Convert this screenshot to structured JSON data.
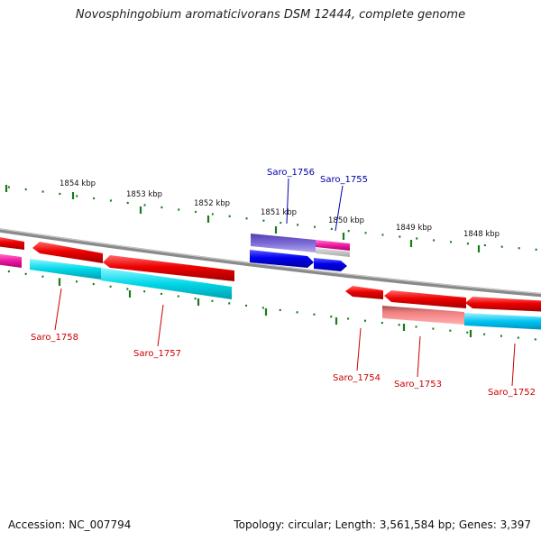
{
  "title": "Novosphingobium aromaticivorans DSM 12444, complete genome",
  "footer": {
    "accession": "Accession: NC_007794",
    "summary": "Topology: circular; Length: 3,561,584 bp; Genes: 3,397"
  },
  "scale": {
    "labels": [
      "1854 kbp",
      "1853 kbp",
      "1852 kbp",
      "1851 kbp",
      "1850 kbp",
      "1849 kbp",
      "1848 kbp"
    ]
  },
  "genes_top": [
    {
      "label": "Saro_1756",
      "color": "#0000aa"
    },
    {
      "label": "Saro_1755",
      "color": "#0000aa"
    }
  ],
  "genes_bottom": [
    {
      "label": "Saro_1758",
      "color": "#cc0000"
    },
    {
      "label": "Saro_1757",
      "color": "#cc0000"
    },
    {
      "label": "Saro_1754",
      "color": "#cc0000"
    },
    {
      "label": "Saro_1753",
      "color": "#cc0000"
    },
    {
      "label": "Saro_1752",
      "color": "#cc0000"
    }
  ],
  "colors": {
    "backbone": "#808080",
    "tick": "#1a7a1a",
    "forward_cds": "#0000ee",
    "reverse_cds": "#ee0000",
    "cog_cyan": "#00d8e8",
    "cog_magenta": "#ee1aa0",
    "cog_purple": "#7b6ad6",
    "cog_pink": "#f08080"
  }
}
